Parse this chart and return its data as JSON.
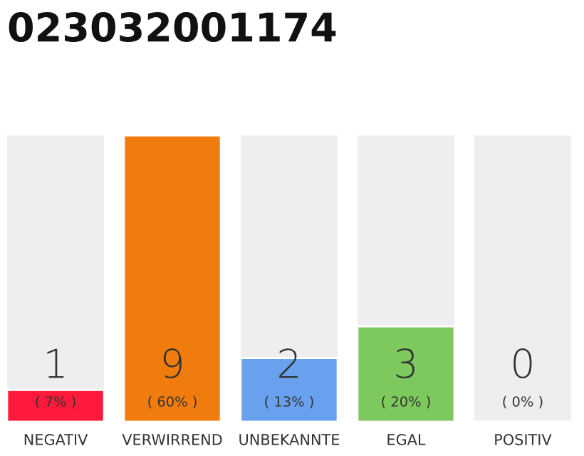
{
  "chart_data": {
    "type": "bar",
    "title": "023032001174",
    "categories": [
      "NEGATIV",
      "VERWIRREND",
      "UNBEKANNTE",
      "EGAL",
      "POSITIV"
    ],
    "values": [
      1,
      9,
      2,
      3,
      0
    ],
    "colors": [
      "#ff1a3c",
      "#f07c0e",
      "#6aa1ee",
      "#7dc95e",
      null
    ],
    "value_labels": [
      "1",
      "9",
      "2",
      "3",
      "0"
    ],
    "annotations": [
      "( 7% )",
      "( 60% )",
      "( 13% )",
      "( 20% )",
      "( 0% )"
    ]
  }
}
